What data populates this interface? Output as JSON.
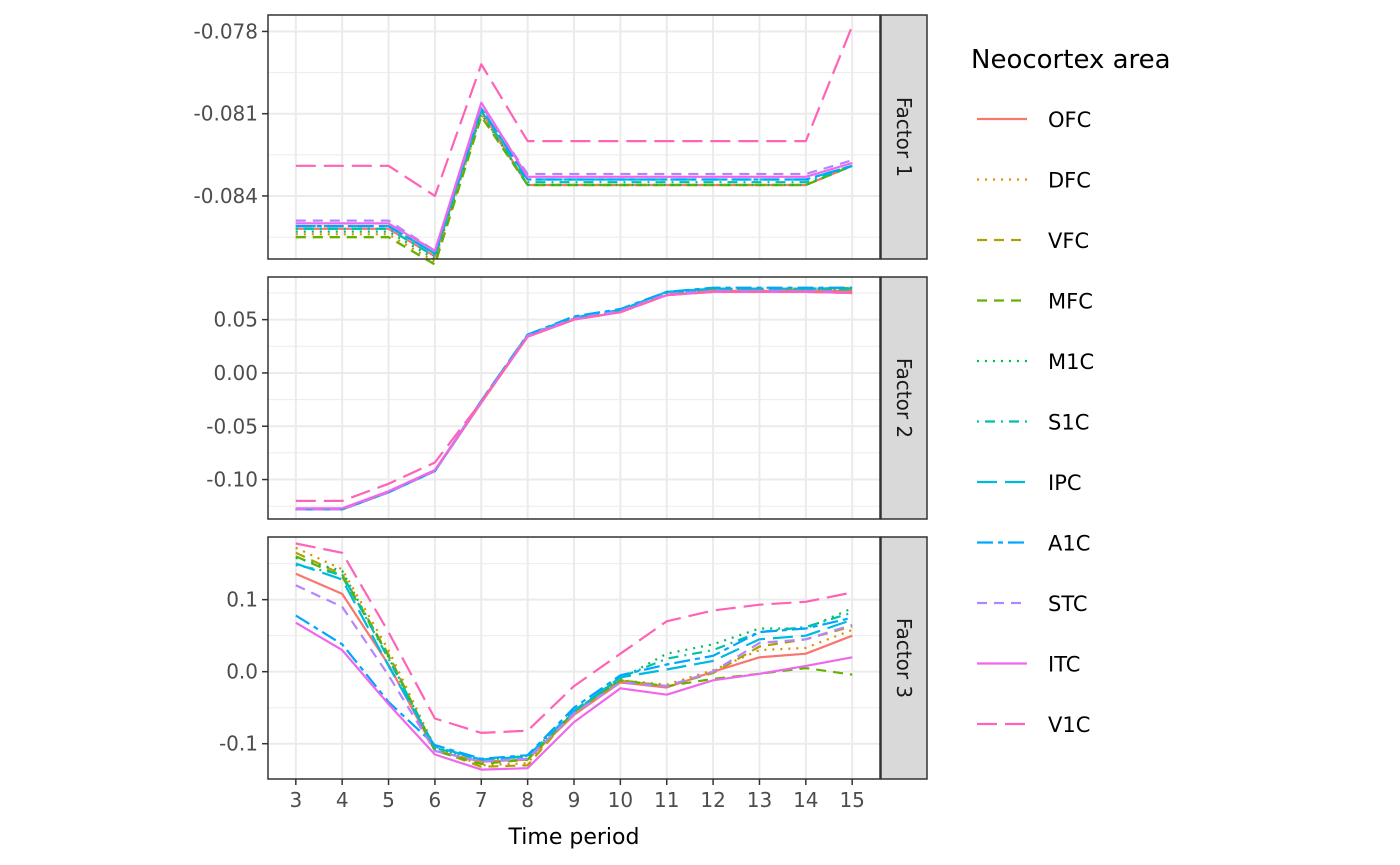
{
  "chart_data": {
    "type": "line",
    "xlabel": "Time period",
    "x": [
      3,
      4,
      5,
      6,
      7,
      8,
      9,
      10,
      11,
      12,
      13,
      14,
      15
    ],
    "legend": {
      "title": "Neocortex area",
      "placement": "right"
    },
    "grid": true,
    "series_styles": [
      {
        "name": "OFC",
        "color": "#F8766D",
        "dash": "solid"
      },
      {
        "name": "DFC",
        "color": "#DB8E00",
        "dash": "dotted"
      },
      {
        "name": "VFC",
        "color": "#AEA200",
        "dash": "dashed"
      },
      {
        "name": "MFC",
        "color": "#64B200",
        "dash": "dashed"
      },
      {
        "name": "M1C",
        "color": "#00BD5C",
        "dash": "dotted"
      },
      {
        "name": "S1C",
        "color": "#00C1A7",
        "dash": "dotdash"
      },
      {
        "name": "IPC",
        "color": "#00BADE",
        "dash": "longdash"
      },
      {
        "name": "A1C",
        "color": "#00A6FF",
        "dash": "twodash"
      },
      {
        "name": "STC",
        "color": "#B385FF",
        "dash": "dashed"
      },
      {
        "name": "ITC",
        "color": "#EF67EB",
        "dash": "solid"
      },
      {
        "name": "V1C",
        "color": "#FF63B6",
        "dash": "longdash"
      }
    ],
    "panels": [
      {
        "strip": "Factor 1",
        "ylim": [
          -0.0863,
          -0.0774
        ],
        "yticks": [
          -0.084,
          -0.081,
          -0.078
        ],
        "ytick_labels": [
          "-0.084",
          "-0.081",
          "-0.078"
        ],
        "series": [
          {
            "name": "OFC",
            "values": [
              -0.0852,
              -0.0852,
              -0.0852,
              -0.0862,
              -0.0809,
              -0.0836,
              -0.0836,
              -0.0836,
              -0.0836,
              -0.0836,
              -0.0836,
              -0.0836,
              -0.0829
            ]
          },
          {
            "name": "DFC",
            "values": [
              -0.0854,
              -0.0854,
              -0.0854,
              -0.0864,
              -0.081,
              -0.0836,
              -0.0836,
              -0.0836,
              -0.0836,
              -0.0836,
              -0.0836,
              -0.0836,
              -0.0829
            ]
          },
          {
            "name": "VFC",
            "values": [
              -0.0855,
              -0.0855,
              -0.0855,
              -0.0865,
              -0.0811,
              -0.0836,
              -0.0836,
              -0.0836,
              -0.0836,
              -0.0836,
              -0.0836,
              -0.0836,
              -0.0829
            ]
          },
          {
            "name": "MFC",
            "values": [
              -0.0855,
              -0.0855,
              -0.0855,
              -0.0865,
              -0.0811,
              -0.0836,
              -0.0836,
              -0.0836,
              -0.0836,
              -0.0836,
              -0.0836,
              -0.0836,
              -0.0829
            ]
          },
          {
            "name": "M1C",
            "values": [
              -0.0853,
              -0.0853,
              -0.0853,
              -0.0863,
              -0.081,
              -0.0836,
              -0.0836,
              -0.0836,
              -0.0836,
              -0.0836,
              -0.0836,
              -0.0836,
              -0.0829
            ]
          },
          {
            "name": "S1C",
            "values": [
              -0.0852,
              -0.0852,
              -0.0852,
              -0.0862,
              -0.0809,
              -0.0835,
              -0.0835,
              -0.0835,
              -0.0835,
              -0.0835,
              -0.0835,
              -0.0835,
              -0.0829
            ]
          },
          {
            "name": "IPC",
            "values": [
              -0.0851,
              -0.0851,
              -0.0851,
              -0.0861,
              -0.0808,
              -0.0834,
              -0.0834,
              -0.0834,
              -0.0834,
              -0.0834,
              -0.0834,
              -0.0834,
              -0.0829
            ]
          },
          {
            "name": "A1C",
            "values": [
              -0.0851,
              -0.0851,
              -0.0851,
              -0.0861,
              -0.0808,
              -0.0834,
              -0.0834,
              -0.0834,
              -0.0834,
              -0.0834,
              -0.0834,
              -0.0834,
              -0.0829
            ]
          },
          {
            "name": "STC",
            "values": [
              -0.0849,
              -0.0849,
              -0.0849,
              -0.086,
              -0.0807,
              -0.0832,
              -0.0832,
              -0.0832,
              -0.0832,
              -0.0832,
              -0.0832,
              -0.0832,
              -0.0827
            ]
          },
          {
            "name": "ITC",
            "values": [
              -0.085,
              -0.085,
              -0.085,
              -0.086,
              -0.0806,
              -0.0833,
              -0.0833,
              -0.0833,
              -0.0833,
              -0.0833,
              -0.0833,
              -0.0833,
              -0.0828
            ]
          },
          {
            "name": "V1C",
            "values": [
              -0.0829,
              -0.0829,
              -0.0829,
              -0.084,
              -0.0792,
              -0.082,
              -0.082,
              -0.082,
              -0.082,
              -0.082,
              -0.082,
              -0.082,
              -0.0778
            ]
          }
        ]
      },
      {
        "strip": "Factor 2",
        "ylim": [
          -0.137,
          0.09
        ],
        "yticks": [
          -0.1,
          -0.05,
          0.0,
          0.05
        ],
        "ytick_labels": [
          "-0.10",
          "-0.05",
          "0.00",
          "0.05"
        ],
        "series": [
          {
            "name": "OFC",
            "values": [
              -0.128,
              -0.128,
              -0.112,
              -0.092,
              -0.028,
              0.034,
              0.05,
              0.057,
              0.073,
              0.077,
              0.077,
              0.077,
              0.077
            ]
          },
          {
            "name": "DFC",
            "values": [
              -0.128,
              -0.128,
              -0.112,
              -0.092,
              -0.027,
              0.035,
              0.051,
              0.058,
              0.074,
              0.077,
              0.077,
              0.077,
              0.078
            ]
          },
          {
            "name": "VFC",
            "values": [
              -0.128,
              -0.128,
              -0.112,
              -0.092,
              -0.027,
              0.035,
              0.051,
              0.058,
              0.074,
              0.078,
              0.078,
              0.078,
              0.08
            ]
          },
          {
            "name": "MFC",
            "values": [
              -0.128,
              -0.128,
              -0.112,
              -0.092,
              -0.027,
              0.035,
              0.051,
              0.058,
              0.074,
              0.078,
              0.078,
              0.078,
              0.078
            ]
          },
          {
            "name": "M1C",
            "values": [
              -0.128,
              -0.128,
              -0.112,
              -0.092,
              -0.027,
              0.035,
              0.052,
              0.059,
              0.075,
              0.079,
              0.079,
              0.079,
              0.079
            ]
          },
          {
            "name": "S1C",
            "values": [
              -0.128,
              -0.128,
              -0.112,
              -0.092,
              -0.027,
              0.035,
              0.052,
              0.059,
              0.075,
              0.079,
              0.079,
              0.079,
              0.079
            ]
          },
          {
            "name": "IPC",
            "values": [
              -0.128,
              -0.128,
              -0.112,
              -0.092,
              -0.026,
              0.036,
              0.052,
              0.059,
              0.076,
              0.079,
              0.079,
              0.079,
              0.08
            ]
          },
          {
            "name": "A1C",
            "values": [
              -0.128,
              -0.128,
              -0.112,
              -0.092,
              -0.026,
              0.036,
              0.053,
              0.06,
              0.076,
              0.08,
              0.08,
              0.08,
              0.08
            ]
          },
          {
            "name": "STC",
            "values": [
              -0.128,
              -0.128,
              -0.112,
              -0.092,
              -0.027,
              0.035,
              0.051,
              0.058,
              0.074,
              0.077,
              0.077,
              0.077,
              0.076
            ]
          },
          {
            "name": "ITC",
            "values": [
              -0.127,
              -0.127,
              -0.111,
              -0.091,
              -0.027,
              0.034,
              0.05,
              0.057,
              0.073,
              0.076,
              0.076,
              0.076,
              0.075
            ]
          },
          {
            "name": "V1C",
            "values": [
              -0.12,
              -0.12,
              -0.104,
              -0.084,
              -0.027,
              0.034,
              0.05,
              0.057,
              0.073,
              0.076,
              0.076,
              0.076,
              0.075
            ]
          }
        ]
      },
      {
        "strip": "Factor 3",
        "ylim": [
          -0.149,
          0.187
        ],
        "yticks": [
          -0.1,
          0.0,
          0.1
        ],
        "ytick_labels": [
          "-0.1",
          "0.0",
          "0.1"
        ],
        "series": [
          {
            "name": "OFC",
            "values": [
              0.136,
              0.108,
              0.01,
              -0.11,
              -0.125,
              -0.122,
              -0.06,
              -0.015,
              -0.022,
              0.0,
              0.02,
              0.025,
              0.05
            ]
          },
          {
            "name": "DFC",
            "values": [
              0.172,
              0.142,
              0.03,
              -0.105,
              -0.13,
              -0.127,
              -0.055,
              -0.012,
              -0.018,
              0.002,
              0.03,
              0.033,
              0.058
            ]
          },
          {
            "name": "VFC",
            "values": [
              0.165,
              0.135,
              0.024,
              -0.108,
              -0.132,
              -0.13,
              -0.056,
              -0.012,
              -0.02,
              -0.002,
              0.035,
              0.045,
              0.063
            ]
          },
          {
            "name": "MFC",
            "values": [
              0.16,
              0.132,
              0.022,
              -0.11,
              -0.128,
              -0.122,
              -0.056,
              -0.012,
              -0.02,
              -0.01,
              -0.003,
              0.005,
              -0.004
            ]
          },
          {
            "name": "M1C",
            "values": [
              0.158,
              0.14,
              0.02,
              -0.107,
              -0.122,
              -0.118,
              -0.056,
              -0.01,
              0.025,
              0.038,
              0.06,
              0.06,
              0.088
            ]
          },
          {
            "name": "S1C",
            "values": [
              0.148,
              0.135,
              0.018,
              -0.106,
              -0.122,
              -0.117,
              -0.056,
              -0.008,
              0.018,
              0.03,
              0.055,
              0.062,
              0.082
            ]
          },
          {
            "name": "IPC",
            "values": [
              0.15,
              0.128,
              0.008,
              -0.104,
              -0.122,
              -0.118,
              -0.054,
              -0.008,
              0.003,
              0.015,
              0.045,
              0.05,
              0.072
            ]
          },
          {
            "name": "A1C",
            "values": [
              0.078,
              0.038,
              -0.042,
              -0.102,
              -0.121,
              -0.116,
              -0.05,
              -0.005,
              0.01,
              0.022,
              0.055,
              0.06,
              0.075
            ]
          },
          {
            "name": "STC",
            "values": [
              0.12,
              0.09,
              -0.005,
              -0.11,
              -0.125,
              -0.121,
              -0.058,
              -0.015,
              -0.02,
              0.0,
              0.04,
              0.045,
              0.065
            ]
          },
          {
            "name": "ITC",
            "values": [
              0.068,
              0.03,
              -0.045,
              -0.115,
              -0.136,
              -0.134,
              -0.07,
              -0.023,
              -0.032,
              -0.012,
              -0.003,
              0.008,
              0.02
            ]
          },
          {
            "name": "V1C",
            "values": [
              0.178,
              0.165,
              0.055,
              -0.065,
              -0.085,
              -0.082,
              -0.02,
              0.025,
              0.07,
              0.085,
              0.093,
              0.097,
              0.11
            ]
          }
        ]
      }
    ]
  }
}
